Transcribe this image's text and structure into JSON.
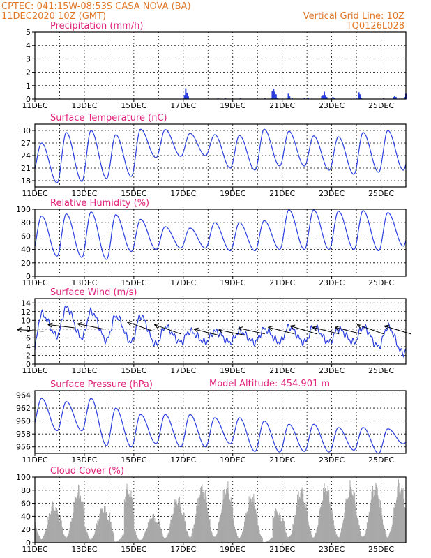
{
  "header": {
    "line1": "CPTEC:  041:15W-08:53S   CASA NOVA (BA)",
    "line2": "11DEC2020 10Z (GMT)",
    "grid_note": "Vertical Grid Line: 10Z",
    "code": "TQ0126L028",
    "model_altitude": "Model Altitude: 454.901  m"
  },
  "colors": {
    "header": "#e07828",
    "panel_title": "#e0207a",
    "line": "#2a3ee0",
    "bar": "#2a3ee0",
    "cloud": "#a8a8a8",
    "wind_arrow": "#000000"
  },
  "x_ticks": [
    "11DEC",
    "13DEC",
    "15DEC",
    "17DEC",
    "19DEC",
    "21DEC",
    "23DEC",
    "25DEC"
  ],
  "chart_data": [
    {
      "type": "bar",
      "title": "Precipitation (mm/h)",
      "ylim": [
        0,
        5
      ],
      "yticks": [
        0,
        1,
        2,
        3,
        4,
        5
      ],
      "x_unit": "days since 11DEC2020 10Z",
      "bars": [
        [
          6.05,
          0.3
        ],
        [
          6.1,
          0.8
        ],
        [
          6.15,
          0.45
        ],
        [
          6.2,
          0.2
        ],
        [
          7.4,
          0.05
        ],
        [
          7.7,
          0.05
        ],
        [
          8.3,
          0.05
        ],
        [
          9.3,
          0.05
        ],
        [
          9.55,
          0.1
        ],
        [
          9.6,
          0.6
        ],
        [
          9.65,
          0.75
        ],
        [
          9.7,
          0.55
        ],
        [
          9.75,
          0.35
        ],
        [
          9.8,
          0.1
        ],
        [
          10.2,
          0.1
        ],
        [
          10.25,
          0.4
        ],
        [
          10.3,
          0.2
        ],
        [
          10.4,
          0.1
        ],
        [
          10.9,
          0.1
        ],
        [
          11.05,
          0.1
        ],
        [
          11.6,
          0.2
        ],
        [
          11.65,
          0.3
        ],
        [
          11.7,
          0.55
        ],
        [
          11.75,
          0.3
        ],
        [
          11.8,
          0.15
        ],
        [
          12.05,
          0.15
        ],
        [
          12.1,
          0.1
        ],
        [
          13.0,
          0.1
        ],
        [
          13.1,
          0.5
        ],
        [
          13.15,
          0.35
        ],
        [
          13.2,
          0.1
        ],
        [
          14.1,
          0.05
        ],
        [
          14.5,
          0.15
        ],
        [
          14.55,
          0.25
        ],
        [
          14.6,
          0.15
        ],
        [
          14.95,
          0.15
        ],
        [
          15.0,
          0.4
        ]
      ]
    },
    {
      "type": "line",
      "title": "Surface Temperature (nC)",
      "ylim": [
        16.5,
        31.5
      ],
      "yticks": [
        18,
        21,
        24,
        27,
        30
      ],
      "x_unit": "days since 11DEC2020 10Z",
      "days": [
        {
          "max": 27.0,
          "min": 19.5
        },
        {
          "max": 29.5,
          "min": 17.5
        },
        {
          "max": 30.0,
          "min": 17.8
        },
        {
          "max": 29.0,
          "min": 18.5
        },
        {
          "max": 30.3,
          "min": 19.0
        },
        {
          "max": 30.2,
          "min": 23.5
        },
        {
          "max": 29.3,
          "min": 23.8
        },
        {
          "max": 29.0,
          "min": 24.0
        },
        {
          "max": 28.8,
          "min": 21.0
        },
        {
          "max": 30.3,
          "min": 20.5
        },
        {
          "max": 29.8,
          "min": 21.5
        },
        {
          "max": 28.7,
          "min": 21.5
        },
        {
          "max": 28.5,
          "min": 20.5
        },
        {
          "max": 29.5,
          "min": 19.5
        },
        {
          "max": 30.0,
          "min": 20.0
        },
        {
          "max": 29.3,
          "min": 20.5
        }
      ]
    },
    {
      "type": "line",
      "title": "Relative Humidity (%)",
      "ylim": [
        0,
        100
      ],
      "yticks": [
        0,
        20,
        40,
        60,
        80,
        100
      ],
      "x_unit": "days since 11DEC2020 10Z",
      "days": [
        {
          "max": 90,
          "min": 35
        },
        {
          "max": 93,
          "min": 30
        },
        {
          "max": 96,
          "min": 28
        },
        {
          "max": 92,
          "min": 25
        },
        {
          "max": 85,
          "min": 37
        },
        {
          "max": 74,
          "min": 40
        },
        {
          "max": 72,
          "min": 42
        },
        {
          "max": 80,
          "min": 42
        },
        {
          "max": 80,
          "min": 38
        },
        {
          "max": 83,
          "min": 38
        },
        {
          "max": 99,
          "min": 40
        },
        {
          "max": 99,
          "min": 40
        },
        {
          "max": 97,
          "min": 40
        },
        {
          "max": 98,
          "min": 40
        },
        {
          "max": 95,
          "min": 38
        },
        {
          "max": 97,
          "min": 45
        }
      ]
    },
    {
      "type": "line",
      "title": "Surface Wind (m/s)",
      "ylim": [
        0,
        15
      ],
      "yticks": [
        0,
        2,
        4,
        6,
        8,
        10,
        12,
        14
      ],
      "x_unit": "days since 11DEC2020 10Z",
      "days": [
        {
          "max": 11.5,
          "min": 1.5
        },
        {
          "max": 13.0,
          "min": 6.5
        },
        {
          "max": 12.0,
          "min": 6.0
        },
        {
          "max": 11.0,
          "min": 5.5
        },
        {
          "max": 11.0,
          "min": 5.0
        },
        {
          "max": 8.5,
          "min": 4.5
        },
        {
          "max": 7.5,
          "min": 5.0
        },
        {
          "max": 7.5,
          "min": 5.0
        },
        {
          "max": 7.5,
          "min": 5.0
        },
        {
          "max": 8.0,
          "min": 5.0
        },
        {
          "max": 8.5,
          "min": 5.0
        },
        {
          "max": 8.5,
          "min": 5.0
        },
        {
          "max": 8.0,
          "min": 5.0
        },
        {
          "max": 8.5,
          "min": 5.0
        },
        {
          "max": 8.5,
          "min": 4.0
        },
        {
          "max": 8.5,
          "min": 2.5
        }
      ],
      "vectors": [
        [
          0.35,
          7.5,
          -1,
          -0.07
        ],
        [
          1.6,
          8.3,
          -1,
          -0.12
        ],
        [
          2.8,
          8.0,
          -1,
          -0.2
        ],
        [
          4.8,
          7.5,
          -1,
          -0.35
        ],
        [
          5.9,
          6.9,
          -1,
          -0.35
        ],
        [
          7.5,
          6.5,
          -1,
          -0.25
        ],
        [
          8.5,
          6.6,
          -1,
          -0.2
        ],
        [
          9.3,
          6.9,
          -1,
          -0.22
        ],
        [
          10.5,
          6.9,
          -1,
          -0.25
        ],
        [
          11.4,
          6.9,
          -1,
          -0.3
        ],
        [
          12.3,
          6.9,
          -1,
          -0.25
        ],
        [
          13.2,
          6.9,
          -1,
          -0.25
        ],
        [
          14.1,
          6.9,
          -1,
          -0.35
        ],
        [
          15.2,
          6.9,
          -1,
          -0.3
        ]
      ]
    },
    {
      "type": "line",
      "title": "Surface Pressure (hPa)",
      "ylim": [
        955.0,
        964.7
      ],
      "yticks": [
        956,
        958,
        960,
        962,
        964
      ],
      "x_unit": "days since 11DEC2020 10Z",
      "days": [
        {
          "max": 963.5,
          "min": 959.0
        },
        {
          "max": 963.0,
          "min": 958.5
        },
        {
          "max": 963.5,
          "min": 958.5
        },
        {
          "max": 962.0,
          "min": 956.2
        },
        {
          "max": 961.0,
          "min": 956.0
        },
        {
          "max": 961.0,
          "min": 956.5
        },
        {
          "max": 961.0,
          "min": 956.0
        },
        {
          "max": 960.5,
          "min": 956.0
        },
        {
          "max": 960.5,
          "min": 956.5
        },
        {
          "max": 960.0,
          "min": 955.3
        },
        {
          "max": 959.5,
          "min": 955.2
        },
        {
          "max": 959.5,
          "min": 955.3
        },
        {
          "max": 959.0,
          "min": 955.2
        },
        {
          "max": 959.0,
          "min": 955.5
        },
        {
          "max": 958.8,
          "min": 955.0
        },
        {
          "max": 958.0,
          "min": 956.5
        }
      ]
    },
    {
      "type": "bar",
      "title": "Cloud Cover (%)",
      "ylim": [
        0,
        100
      ],
      "yticks": [
        0,
        20,
        40,
        60,
        80,
        100
      ],
      "x_unit": "days since 11DEC2020 10Z",
      "daily_peaks": [
        65,
        90,
        60,
        95,
        45,
        75,
        95,
        97,
        80,
        55,
        90,
        95,
        98,
        98,
        100,
        97
      ]
    }
  ]
}
